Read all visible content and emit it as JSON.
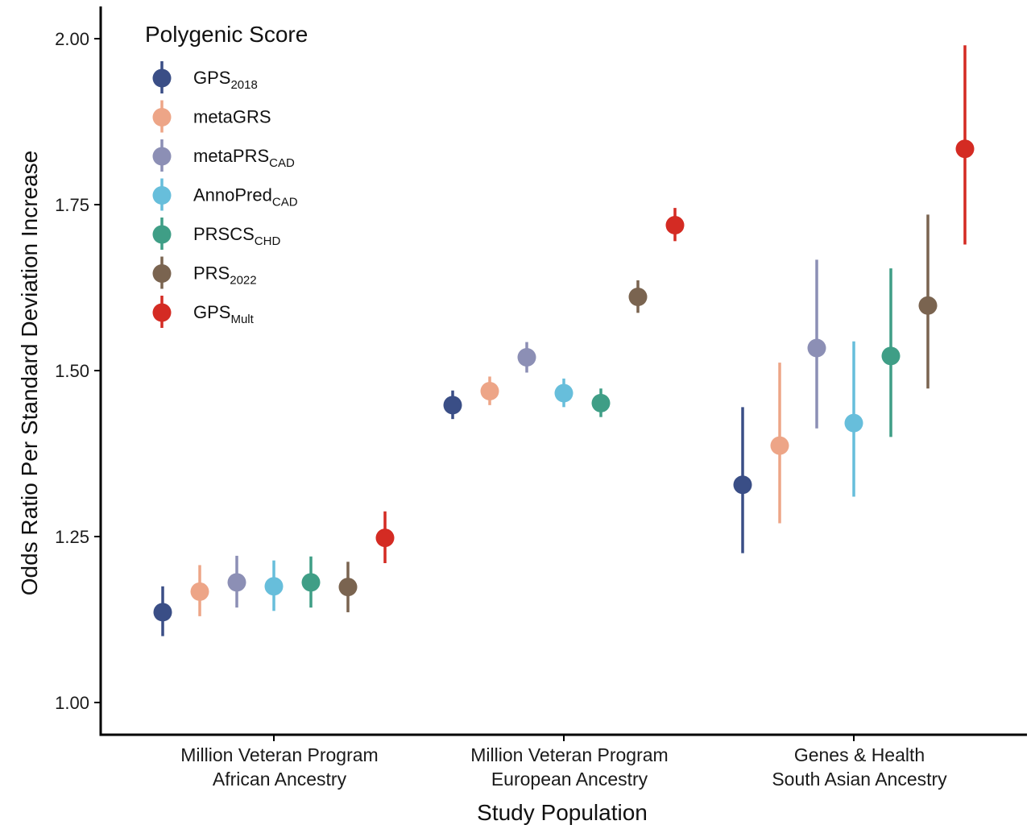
{
  "chart_data": {
    "type": "scatter",
    "xlabel": "Study Population",
    "ylabel": "Odds Ratio Per Standard Deviation Increase",
    "ylim": [
      0.92,
      2.05
    ],
    "y_ticks": [
      "1.00",
      "1.25",
      "1.50",
      "1.75",
      "2.00"
    ],
    "grid": false,
    "legend_position": "top-left",
    "legend_title": "Polygenic Score",
    "categories": [
      [
        "Million Veteran Program",
        "African Ancestry"
      ],
      [
        "Million Veteran Program",
        "European Ancestry"
      ],
      [
        "Genes & Health",
        "South Asian Ancestry"
      ]
    ],
    "series": [
      {
        "name": "GPS",
        "sub": "2018",
        "color": "#3a4e86",
        "values": [
          1.136,
          1.448,
          1.328
        ],
        "lower": [
          1.1,
          1.427,
          1.225
        ],
        "upper": [
          1.175,
          1.47,
          1.445
        ]
      },
      {
        "name": "metaGRS",
        "sub": "",
        "color": "#eda587",
        "values": [
          1.167,
          1.469,
          1.387
        ],
        "lower": [
          1.13,
          1.448,
          1.27
        ],
        "upper": [
          1.207,
          1.491,
          1.512
        ]
      },
      {
        "name": "metaPRS",
        "sub": "CAD",
        "color": "#8c8fb5",
        "values": [
          1.181,
          1.52,
          1.534
        ],
        "lower": [
          1.143,
          1.497,
          1.413
        ],
        "upper": [
          1.221,
          1.543,
          1.667
        ]
      },
      {
        "name": "AnnoPred",
        "sub": "CAD",
        "color": "#67bedb",
        "values": [
          1.175,
          1.466,
          1.421
        ],
        "lower": [
          1.138,
          1.445,
          1.31
        ],
        "upper": [
          1.214,
          1.488,
          1.544
        ]
      },
      {
        "name": "PRSCS",
        "sub": "CHD",
        "color": "#3f9e86",
        "values": [
          1.181,
          1.451,
          1.522
        ],
        "lower": [
          1.143,
          1.43,
          1.4
        ],
        "upper": [
          1.22,
          1.473,
          1.654
        ]
      },
      {
        "name": "PRS",
        "sub": "2022",
        "color": "#7a6450",
        "values": [
          1.174,
          1.611,
          1.598
        ],
        "lower": [
          1.136,
          1.587,
          1.473
        ],
        "upper": [
          1.212,
          1.636,
          1.735
        ]
      },
      {
        "name": "GPS",
        "sub": "Mult",
        "color": "#d42b23",
        "values": [
          1.248,
          1.719,
          1.834
        ],
        "lower": [
          1.21,
          1.695,
          1.69
        ],
        "upper": [
          1.288,
          1.745,
          1.99
        ]
      }
    ]
  }
}
